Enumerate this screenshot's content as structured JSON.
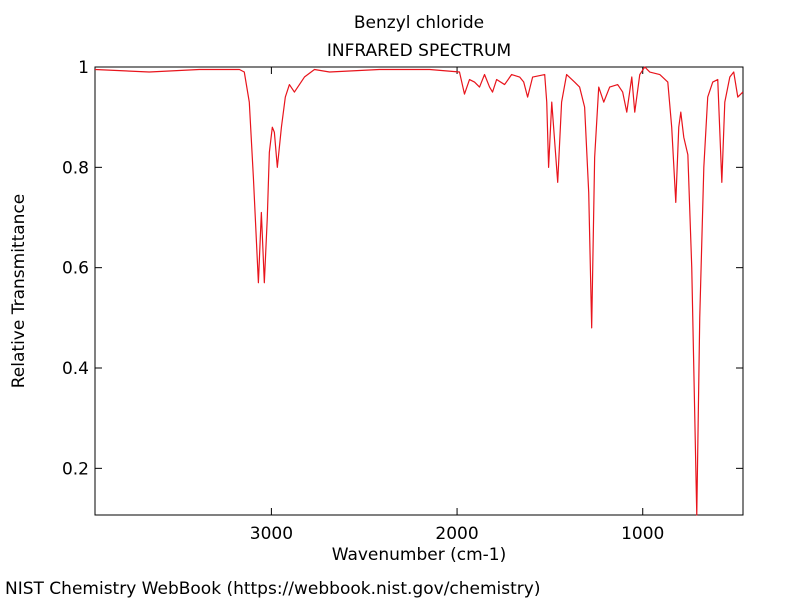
{
  "chart_data": {
    "type": "line",
    "title": "Benzyl chloride",
    "subtitle": "INFRARED SPECTRUM",
    "x_label": "Wavenumber (cm-1)",
    "y_label": "Relative Transmittance",
    "x": [
      3950,
      3658,
      3388,
      3172,
      3146,
      3119,
      3097,
      3070,
      3054,
      3038,
      3022,
      3011,
      2995,
      2984,
      2968,
      2946,
      2925,
      2903,
      2876,
      2822,
      2768,
      2687,
      2418,
      2148,
      1987,
      1960,
      1933,
      1906,
      1879,
      1852,
      1825,
      1809,
      1787,
      1744,
      1706,
      1663,
      1641,
      1620,
      1593,
      1528,
      1517,
      1507,
      1490,
      1474,
      1458,
      1437,
      1410,
      1367,
      1340,
      1313,
      1291,
      1275,
      1259,
      1237,
      1210,
      1178,
      1135,
      1108,
      1086,
      1059,
      1043,
      1016,
      989,
      962,
      908,
      865,
      844,
      822,
      806,
      795,
      779,
      757,
      736,
      709,
      693,
      671,
      650,
      623,
      596,
      574,
      558,
      531,
      510,
      488,
      461
    ],
    "series": [
      {
        "color": "#e8141c",
        "values": [
          0.995,
          0.99,
          0.995,
          0.995,
          0.99,
          0.93,
          0.78,
          0.57,
          0.71,
          0.57,
          0.7,
          0.83,
          0.88,
          0.87,
          0.8,
          0.88,
          0.94,
          0.965,
          0.95,
          0.98,
          0.995,
          0.99,
          0.995,
          0.995,
          0.99,
          0.946,
          0.975,
          0.97,
          0.96,
          0.985,
          0.96,
          0.95,
          0.975,
          0.965,
          0.985,
          0.98,
          0.97,
          0.94,
          0.98,
          0.985,
          0.93,
          0.8,
          0.93,
          0.85,
          0.77,
          0.93,
          0.985,
          0.97,
          0.96,
          0.92,
          0.75,
          0.48,
          0.82,
          0.96,
          0.93,
          0.96,
          0.965,
          0.95,
          0.91,
          0.98,
          0.91,
          0.985,
          1.0,
          0.99,
          0.985,
          0.97,
          0.88,
          0.73,
          0.88,
          0.91,
          0.86,
          0.825,
          0.6,
          0.107,
          0.5,
          0.8,
          0.94,
          0.97,
          0.975,
          0.77,
          0.93,
          0.98,
          0.99,
          0.94,
          0.95
        ]
      }
    ],
    "xlim": [
      3950,
      460
    ],
    "ylim": [
      0.107,
      1
    ],
    "xticks": [
      3000,
      2000,
      1000
    ],
    "yticks": [
      0.2,
      0.4,
      0.6,
      0.8,
      1
    ]
  },
  "footer": "NIST Chemistry WebBook (https://webbook.nist.gov/chemistry)"
}
